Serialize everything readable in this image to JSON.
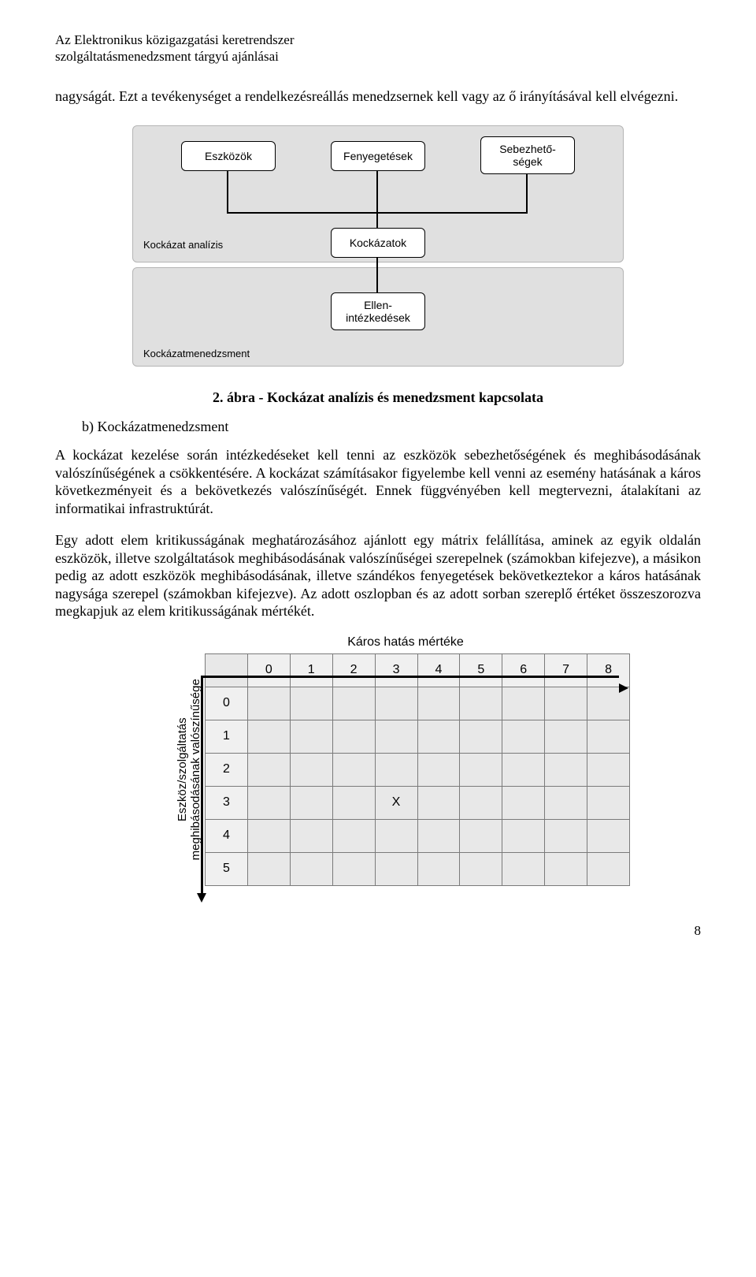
{
  "header": {
    "line1": "Az Elektronikus közigazgatási keretrendszer",
    "line2": "szolgáltatásmenedzsment tárgyú ajánlásai"
  },
  "para1": "nagyságát. Ezt a tevékenységet a rendelkezésreállás menedzsernek kell vagy az ő irányításával kell elvégezni.",
  "diagram1": {
    "boxes": {
      "eszkozok": "Eszközök",
      "fenyegetesek": "Fenyegetések",
      "sebezhetosegek": "Sebezhető-\nségek",
      "kockazatok": "Kockázatok",
      "ellenintezkedesek": "Ellen-\nintézkedések"
    },
    "labels": {
      "analysis": "Kockázat analízis",
      "management": "Kockázatmenedzsment"
    },
    "caption": "2. ábra - Kockázat analízis és menedzsment kapcsolata"
  },
  "subhead_b": "b)  Kockázatmenedzsment",
  "para2": "A kockázat kezelése során intézkedéseket kell tenni az eszközök sebezhetőségének és meghibásodásának valószínűségének a csökkentésére. A kockázat számításakor figyelembe kell venni az esemény hatásának a káros következményeit és a bekövetkezés valószínűségét. Ennek függvényében kell megtervezni, átalakítani az informatikai infrastruktúrát.",
  "para3": "Egy adott elem kritikusságának meghatározásához ajánlott egy mátrix felállítása, aminek az egyik oldalán eszközök, illetve szolgáltatások meghibásodásának valószínűségei szerepelnek (számokban kifejezve), a másikon pedig az adott eszközök meghibásodásának, illetve szándékos fenyegetések bekövetkeztekor a káros hatásának nagysága szerepel (számokban kifejezve). Az adott oszlopban és az adott sorban szereplő értéket összeszorozva megkapjuk az elem kritikusságának mértékét.",
  "matrix": {
    "title": "Káros hatás mértéke",
    "ylabel": "Eszköz/szolgáltatás\nmeghibásodásának valószínűsége",
    "cols": [
      "0",
      "1",
      "2",
      "3",
      "4",
      "5",
      "6",
      "7",
      "8"
    ],
    "rows": [
      "0",
      "1",
      "2",
      "3",
      "4",
      "5"
    ],
    "mark": {
      "row": 3,
      "col": 3,
      "text": "X"
    }
  },
  "page_number": "8"
}
